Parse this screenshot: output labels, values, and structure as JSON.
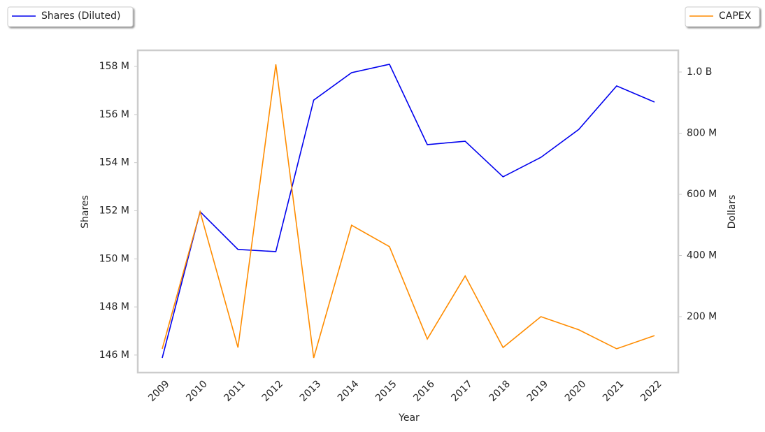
{
  "chart_data": {
    "type": "line",
    "x_label": "Year",
    "y_label": "Shares",
    "y2_label": "Dollars",
    "categories": [
      "2009",
      "2010",
      "2011",
      "2012",
      "2013",
      "2014",
      "2015",
      "2016",
      "2017",
      "2018",
      "2019",
      "2020",
      "2021",
      "2022"
    ],
    "series": [
      {
        "name": "Shares (Diluted)",
        "color": "#0000ee",
        "values": [
          145880000,
          151960000,
          150390000,
          150300000,
          156600000,
          157740000,
          158090000,
          154750000,
          154890000,
          153410000,
          154220000,
          155380000,
          157190000,
          156520000
        ]
      },
      {
        "name": "CAPEX",
        "color": "#ff8c00",
        "axis": "y2",
        "values": [
          95000000,
          543000000,
          99000000,
          1025000000,
          65000000,
          499000000,
          429000000,
          127000000,
          333000000,
          99000000,
          200000000,
          157000000,
          95000000,
          138000000
        ]
      }
    ],
    "ylim": [
      145270000,
      158670000
    ],
    "yticks": [
      {
        "value": 146000000,
        "label": "146 M"
      },
      {
        "value": 148000000,
        "label": "148 M"
      },
      {
        "value": 150000000,
        "label": "150 M"
      },
      {
        "value": 152000000,
        "label": "152 M"
      },
      {
        "value": 154000000,
        "label": "154 M"
      },
      {
        "value": 156000000,
        "label": "156 M"
      },
      {
        "value": 158000000,
        "label": "158 M"
      }
    ],
    "y2lim": [
      17100000,
      1070900000
    ],
    "y2ticks": [
      {
        "value": 200000000,
        "label": "200 M"
      },
      {
        "value": 400000000,
        "label": "400 M"
      },
      {
        "value": 600000000,
        "label": "600 M"
      },
      {
        "value": 800000000,
        "label": "800 M"
      },
      {
        "value": 1000000000,
        "label": "1.0 B"
      }
    ],
    "legend": "top-left-and-top-right"
  }
}
